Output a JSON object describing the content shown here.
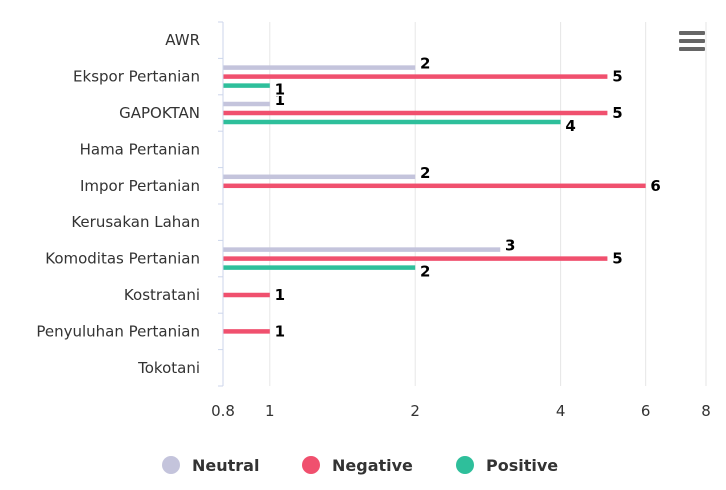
{
  "chart_data": {
    "type": "bar",
    "orientation": "horizontal",
    "x_scale": "log",
    "xlim": [
      0.8,
      8
    ],
    "x_ticks": [
      0.8,
      1,
      2,
      4,
      6,
      8
    ],
    "x_tick_labels": [
      "0.8",
      "1",
      "2",
      "4",
      "6",
      "8"
    ],
    "grid": "vertical",
    "legend_position": "bottom-center",
    "categories": [
      "AWR",
      "Ekspor Pertanian",
      "GAPOKTAN",
      "Hama Pertanian",
      "Impor Pertanian",
      "Kerusakan Lahan",
      "Komoditas Pertanian",
      "Kostratani",
      "Penyuluhan Pertanian",
      "Tokotani"
    ],
    "series": [
      {
        "name": "Neutral",
        "color": "#c4c4dc",
        "values": [
          null,
          2,
          1,
          null,
          2,
          null,
          3,
          null,
          null,
          null
        ]
      },
      {
        "name": "Negative",
        "color": "#f0506e",
        "values": [
          null,
          5,
          5,
          null,
          6,
          null,
          5,
          1,
          1,
          null
        ]
      },
      {
        "name": "Positive",
        "color": "#2ebf9b",
        "values": [
          null,
          1,
          4,
          null,
          null,
          null,
          2,
          null,
          null,
          null
        ]
      }
    ]
  },
  "menu_icon": "hamburger-menu-icon"
}
